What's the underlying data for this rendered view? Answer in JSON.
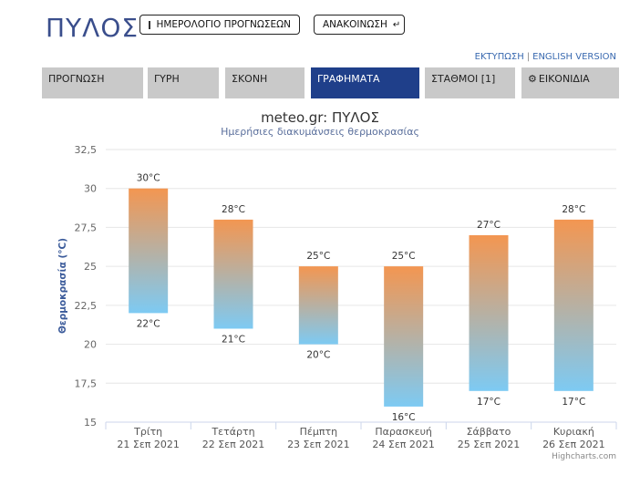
{
  "header": {
    "city": "ΠΥΛΟΣ",
    "calendar_button": "ΗΜΕΡΟΛΟΓΙΟ ΠΡΟΓΝΩΣΕΩΝ",
    "announcement_button": "ΑΝΑΚΟΙΝΩΣΗ",
    "print_link": "ΕΚΤΥΠΩΣΗ",
    "link_separator": "|",
    "english_link": "ENGLISH VERSION"
  },
  "tabs": [
    {
      "label": "ΠΡΟΓΝΩΣΗ",
      "active": false
    },
    {
      "label": "ΓΥΡΗ",
      "active": false
    },
    {
      "label": "ΣΚΟΝΗ",
      "active": false
    },
    {
      "label": "ΓΡΑΦΗΜΑΤΑ",
      "active": true
    },
    {
      "label": "ΣΤΑΘΜΟΙ [1]",
      "active": false
    },
    {
      "label": "ΕΙΚΟΝΙΔΙΑ",
      "active": false
    }
  ],
  "icons": {
    "calendar": "calendar-icon",
    "announcement": "arrow-down-icon",
    "tab_gear": "gear-icon"
  },
  "colors": {
    "accent": "#1f3f8a",
    "tab_bg": "#c9c9c9",
    "bar_top": "#f39651",
    "bar_bottom": "#7dcaf3"
  },
  "chart_data": {
    "type": "bar",
    "title": "meteo.gr: ΠΥΛΟΣ",
    "subtitle": "Ημερήσιες διακυμάνσεις θερμοκρασίας",
    "ylabel": "Θερμοκρασία (°C)",
    "ylim": [
      15,
      32.5
    ],
    "yticks": [
      "15",
      "17,5",
      "20",
      "22,5",
      "25",
      "27,5",
      "30",
      "32,5"
    ],
    "ytick_values": [
      15,
      17.5,
      20,
      22.5,
      25,
      27.5,
      30,
      32.5
    ],
    "grid": true,
    "categories": [
      {
        "day": "Τρίτη",
        "date": "21 Σεπ 2021"
      },
      {
        "day": "Τετάρτη",
        "date": "22 Σεπ 2021"
      },
      {
        "day": "Πέμπτη",
        "date": "23 Σεπ 2021"
      },
      {
        "day": "Παρασκευή",
        "date": "24 Σεπ 2021"
      },
      {
        "day": "Σάββατο",
        "date": "25 Σεπ 2021"
      },
      {
        "day": "Κυριακή",
        "date": "26 Σεπ 2021"
      }
    ],
    "min": [
      22,
      21,
      20,
      16,
      17,
      17
    ],
    "max": [
      30,
      28,
      25,
      25,
      27,
      28
    ],
    "min_labels": [
      "22°C",
      "21°C",
      "20°C",
      "16°C",
      "17°C",
      "17°C"
    ],
    "max_labels": [
      "30°C",
      "28°C",
      "25°C",
      "25°C",
      "27°C",
      "28°C"
    ],
    "credit": "Highcharts.com"
  }
}
